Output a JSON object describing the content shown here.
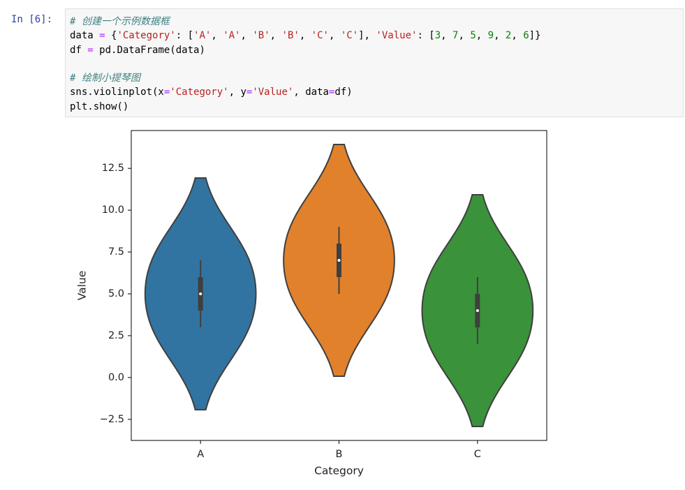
{
  "cell": {
    "prompt": "In [6]:",
    "code": [
      [
        {
          "text": "# 创建一个示例数据框",
          "color": "#408080"
        }
      ],
      [
        {
          "text": "data "
        },
        {
          "text": "=",
          "color": "#aa22ff"
        },
        {
          "text": " {"
        },
        {
          "text": "'Category'",
          "color": "#ba2121"
        },
        {
          "text": ": ["
        },
        {
          "text": "'A'",
          "color": "#ba2121"
        },
        {
          "text": ", "
        },
        {
          "text": "'A'",
          "color": "#ba2121"
        },
        {
          "text": ", "
        },
        {
          "text": "'B'",
          "color": "#ba2121"
        },
        {
          "text": ", "
        },
        {
          "text": "'B'",
          "color": "#ba2121"
        },
        {
          "text": ", "
        },
        {
          "text": "'C'",
          "color": "#ba2121"
        },
        {
          "text": ", "
        },
        {
          "text": "'C'",
          "color": "#ba2121"
        },
        {
          "text": "], "
        },
        {
          "text": "'Value'",
          "color": "#ba2121"
        },
        {
          "text": ": ["
        },
        {
          "text": "3",
          "color": "#008800"
        },
        {
          "text": ", "
        },
        {
          "text": "7",
          "color": "#008800"
        },
        {
          "text": ", "
        },
        {
          "text": "5",
          "color": "#008800"
        },
        {
          "text": ", "
        },
        {
          "text": "9",
          "color": "#008800"
        },
        {
          "text": ", "
        },
        {
          "text": "2",
          "color": "#008800"
        },
        {
          "text": ", "
        },
        {
          "text": "6",
          "color": "#008800"
        },
        {
          "text": "]}"
        }
      ],
      [
        {
          "text": "df "
        },
        {
          "text": "=",
          "color": "#aa22ff"
        },
        {
          "text": " pd.DataFrame(data)"
        }
      ],
      [],
      [
        {
          "text": "# 绘制小提琴图",
          "color": "#408080"
        }
      ],
      [
        {
          "text": "sns.violinplot(x"
        },
        {
          "text": "=",
          "color": "#aa22ff"
        },
        {
          "text": "'Category'",
          "color": "#ba2121"
        },
        {
          "text": ", y"
        },
        {
          "text": "=",
          "color": "#aa22ff"
        },
        {
          "text": "'Value'",
          "color": "#ba2121"
        },
        {
          "text": ", data"
        },
        {
          "text": "=",
          "color": "#aa22ff"
        },
        {
          "text": "df)"
        }
      ],
      [
        {
          "text": "plt.show()"
        }
      ]
    ]
  },
  "chart_data": {
    "type": "violin",
    "xlabel": "Category",
    "ylabel": "Value",
    "categories": [
      "A",
      "B",
      "C"
    ],
    "values": [
      [
        3,
        7
      ],
      [
        5,
        9
      ],
      [
        2,
        6
      ]
    ],
    "colors": [
      "#3274a1",
      "#e1812c",
      "#3a923a"
    ],
    "ylim": [
      -3.76,
      14.76
    ],
    "yticks": [
      {
        "value": -2.5,
        "label": "−2.5"
      },
      {
        "value": 0,
        "label": "0.0"
      },
      2.5,
      {
        "value": 5,
        "label": "5.0"
      },
      7.5,
      {
        "value": 10,
        "label": "10.0"
      },
      12.5
    ]
  }
}
